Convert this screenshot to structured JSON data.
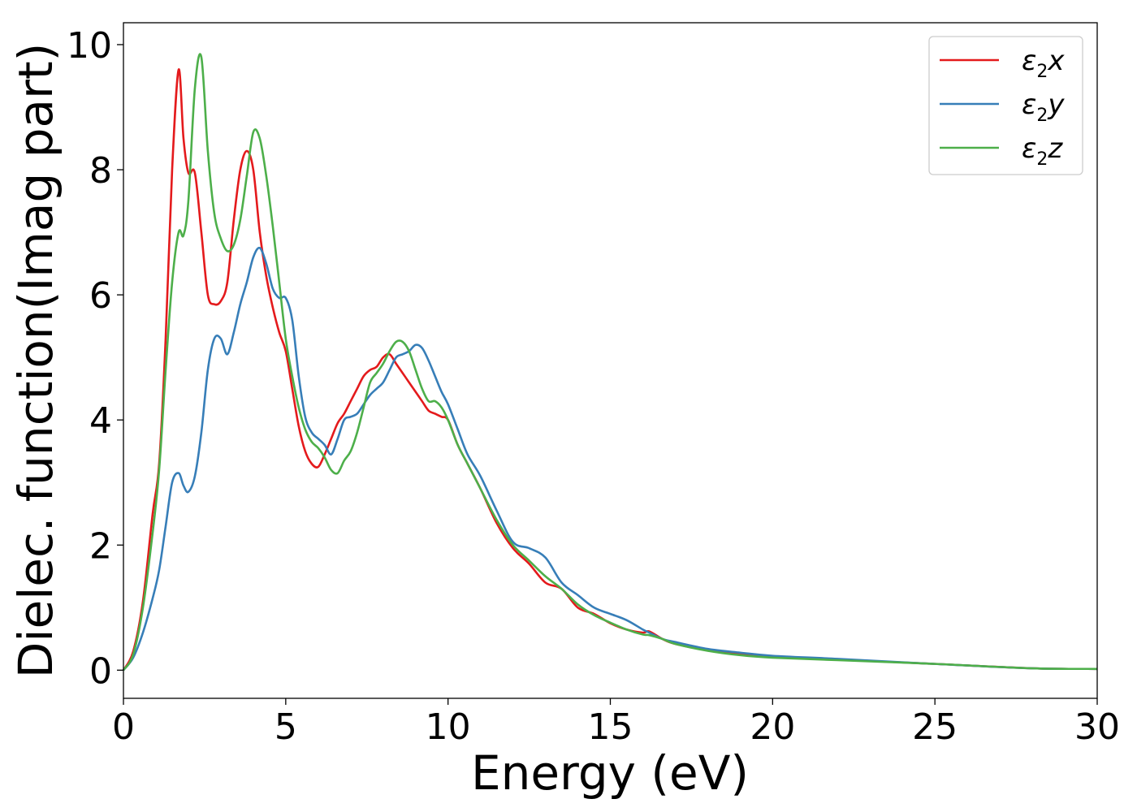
{
  "chart_data": {
    "type": "line",
    "title": "",
    "xlabel": "Energy (eV)",
    "ylabel": "Dielec. function(Imag part)",
    "xlim": [
      0,
      30
    ],
    "ylim": [
      -0.45,
      10.35
    ],
    "xticks": [
      0,
      5,
      10,
      15,
      20,
      25,
      30
    ],
    "yticks": [
      0,
      2,
      4,
      6,
      8,
      10
    ],
    "grid": false,
    "legend_position": "top-right",
    "series": [
      {
        "name": "ε2x",
        "legend": {
          "base": "ε",
          "sub": "2",
          "var": "x"
        },
        "color": "#e41a1c",
        "x": [
          0,
          0.3,
          0.6,
          0.9,
          1.1,
          1.3,
          1.5,
          1.7,
          1.85,
          2.0,
          2.2,
          2.4,
          2.6,
          2.8,
          3.0,
          3.2,
          3.4,
          3.6,
          3.8,
          4.0,
          4.2,
          4.4,
          4.6,
          4.8,
          5.0,
          5.2,
          5.4,
          5.6,
          5.8,
          6.0,
          6.2,
          6.4,
          6.6,
          6.8,
          7.0,
          7.2,
          7.4,
          7.6,
          7.8,
          8.0,
          8.2,
          8.4,
          8.6,
          8.8,
          9.0,
          9.2,
          9.4,
          9.6,
          9.8,
          10.0,
          10.3,
          10.6,
          11.0,
          11.5,
          12.0,
          12.5,
          13.0,
          13.5,
          14.0,
          14.5,
          15.0,
          15.5,
          16.0,
          16.2,
          16.6,
          17.0,
          18.0,
          19.0,
          20.0,
          22.0,
          25.0,
          28.0,
          30.0
        ],
        "values": [
          0.0,
          0.3,
          1.1,
          2.5,
          3.3,
          5.3,
          8.0,
          9.6,
          8.5,
          7.95,
          7.95,
          7.0,
          6.0,
          5.85,
          5.9,
          6.2,
          7.2,
          8.0,
          8.3,
          8.0,
          7.0,
          6.3,
          5.8,
          5.4,
          5.1,
          4.5,
          3.9,
          3.5,
          3.3,
          3.25,
          3.45,
          3.7,
          3.95,
          4.1,
          4.3,
          4.5,
          4.7,
          4.8,
          4.85,
          5.0,
          5.05,
          4.9,
          4.75,
          4.6,
          4.45,
          4.3,
          4.15,
          4.1,
          4.05,
          4.0,
          3.6,
          3.3,
          2.9,
          2.35,
          1.95,
          1.7,
          1.4,
          1.3,
          1.0,
          0.9,
          0.75,
          0.65,
          0.6,
          0.62,
          0.5,
          0.42,
          0.32,
          0.25,
          0.21,
          0.17,
          0.1,
          0.03,
          0.02
        ]
      },
      {
        "name": "ε2y",
        "legend": {
          "base": "ε",
          "sub": "2",
          "var": "y"
        },
        "color": "#377eb8",
        "x": [
          0,
          0.3,
          0.6,
          0.9,
          1.1,
          1.3,
          1.5,
          1.7,
          1.85,
          2.0,
          2.2,
          2.4,
          2.6,
          2.8,
          3.0,
          3.2,
          3.4,
          3.6,
          3.8,
          4.0,
          4.2,
          4.4,
          4.6,
          4.8,
          5.0,
          5.2,
          5.4,
          5.6,
          5.8,
          6.0,
          6.2,
          6.4,
          6.6,
          6.8,
          7.0,
          7.2,
          7.4,
          7.6,
          7.8,
          8.0,
          8.2,
          8.4,
          8.6,
          8.8,
          9.0,
          9.2,
          9.4,
          9.6,
          9.8,
          10.0,
          10.3,
          10.6,
          11.0,
          11.5,
          12.0,
          12.5,
          13.0,
          13.5,
          14.0,
          14.5,
          15.0,
          15.5,
          16.0,
          16.2,
          16.6,
          17.0,
          18.0,
          19.0,
          20.0,
          22.0,
          25.0,
          28.0,
          30.0
        ],
        "values": [
          0.0,
          0.2,
          0.6,
          1.15,
          1.6,
          2.3,
          3.0,
          3.15,
          2.95,
          2.85,
          3.1,
          3.8,
          4.8,
          5.3,
          5.3,
          5.05,
          5.4,
          5.85,
          6.2,
          6.6,
          6.75,
          6.5,
          6.1,
          5.95,
          5.95,
          5.6,
          4.7,
          4.05,
          3.8,
          3.7,
          3.6,
          3.45,
          3.7,
          4.0,
          4.05,
          4.1,
          4.25,
          4.4,
          4.5,
          4.6,
          4.8,
          5.0,
          5.05,
          5.1,
          5.2,
          5.15,
          4.95,
          4.7,
          4.45,
          4.25,
          3.85,
          3.45,
          3.1,
          2.55,
          2.05,
          1.95,
          1.8,
          1.4,
          1.2,
          1.0,
          0.9,
          0.8,
          0.65,
          0.6,
          0.5,
          0.45,
          0.34,
          0.28,
          0.23,
          0.18,
          0.1,
          0.03,
          0.02
        ]
      },
      {
        "name": "ε2z",
        "legend": {
          "base": "ε",
          "sub": "2",
          "var": "z"
        },
        "color": "#4daf4a",
        "x": [
          0,
          0.3,
          0.6,
          0.9,
          1.1,
          1.3,
          1.5,
          1.7,
          1.85,
          2.0,
          2.2,
          2.4,
          2.6,
          2.8,
          3.0,
          3.2,
          3.4,
          3.6,
          3.8,
          4.0,
          4.2,
          4.4,
          4.6,
          4.8,
          5.0,
          5.2,
          5.4,
          5.6,
          5.8,
          6.0,
          6.2,
          6.4,
          6.6,
          6.8,
          7.0,
          7.2,
          7.4,
          7.6,
          7.8,
          8.0,
          8.2,
          8.4,
          8.6,
          8.8,
          9.0,
          9.2,
          9.4,
          9.6,
          9.8,
          10.0,
          10.3,
          10.6,
          11.0,
          11.5,
          12.0,
          12.5,
          13.0,
          13.5,
          14.0,
          14.5,
          15.0,
          15.5,
          16.0,
          16.2,
          16.6,
          17.0,
          18.0,
          19.0,
          20.0,
          22.0,
          25.0,
          28.0,
          30.0
        ],
        "values": [
          0.0,
          0.25,
          1.0,
          2.2,
          3.2,
          4.8,
          6.2,
          7.0,
          6.95,
          7.5,
          9.3,
          9.8,
          8.3,
          7.3,
          6.9,
          6.7,
          6.8,
          7.2,
          7.9,
          8.6,
          8.5,
          7.9,
          7.1,
          6.2,
          5.3,
          4.7,
          4.2,
          3.85,
          3.65,
          3.55,
          3.4,
          3.2,
          3.15,
          3.35,
          3.5,
          3.8,
          4.2,
          4.6,
          4.75,
          4.9,
          5.1,
          5.25,
          5.25,
          5.1,
          4.8,
          4.5,
          4.3,
          4.3,
          4.2,
          4.0,
          3.6,
          3.3,
          2.9,
          2.4,
          2.0,
          1.75,
          1.5,
          1.3,
          1.05,
          0.88,
          0.76,
          0.65,
          0.57,
          0.56,
          0.5,
          0.42,
          0.31,
          0.24,
          0.2,
          0.16,
          0.1,
          0.03,
          0.02
        ]
      }
    ]
  }
}
